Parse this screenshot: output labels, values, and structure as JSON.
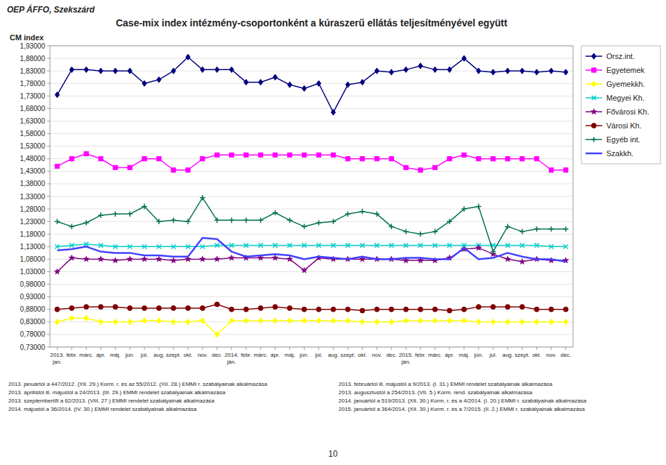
{
  "chart_data": {
    "type": "line",
    "title": "Case-mix index intézmény-csoportonként a kúraszerű ellátás teljesítményével együtt",
    "header": "OEP ÁFFO, Szekszárd",
    "y_label": "CM index",
    "footer_left": [
      "2013. januártól a 447/2012. (XII. 29.) Korm. r. és az 55/2012. (XII. 28.) EMMI r. szabályainak alkalmazása",
      "2013. áprilistól ill. májustól a 24/2013. (III. 29.) EMMI rendelet szabályainak alkalmazása",
      "2013. szeptembertől a 62/2013. (VIII. 27.) EMMI rendelet szabályainak alkalmazása",
      "2014. májustól a 36/2014. (IV. 30.) EMMI rendelet szabályainak alkalmazása"
    ],
    "footer_right": [
      "2013. februártól ill. májustól a 9/2013. (I. 31.) EMMI rendelet szabályainak alkalmazása",
      "2013. augusztustól a 254/2013. (VII. 5.) Korm. rend. szabályainak alkalmazása",
      "2014. januártól a 519/2013. (XII. 30.) Korm. r. és a 4/2014. (I. 20.) EMMI r. szabályainak alkalmazása",
      "2015. januártól a 364/2014. (XII. 30.) Korm. r. és a 7/2015. (II. 2.) EMMI r. szabályainak alkalmazása"
    ],
    "page_number": "10",
    "grid": true,
    "legend": "right",
    "ylim": [
      0.73,
      1.93
    ],
    "yticks": [
      {
        "value": 0.73,
        "label": "0,73000"
      },
      {
        "value": 0.78,
        "label": "0,78000"
      },
      {
        "value": 0.83,
        "label": "0,83000"
      },
      {
        "value": 0.88,
        "label": "0,88000"
      },
      {
        "value": 0.93,
        "label": "0,93000"
      },
      {
        "value": 0.98,
        "label": "0,98000"
      },
      {
        "value": 1.03,
        "label": "1,03000"
      },
      {
        "value": 1.08,
        "label": "1,08000"
      },
      {
        "value": 1.13,
        "label": "1,13000"
      },
      {
        "value": 1.18,
        "label": "1,18000"
      },
      {
        "value": 1.23,
        "label": "1,23000"
      },
      {
        "value": 1.28,
        "label": "1,28000"
      },
      {
        "value": 1.33,
        "label": "1,33000"
      },
      {
        "value": 1.38,
        "label": "1,38000"
      },
      {
        "value": 1.43,
        "label": "1,43000"
      },
      {
        "value": 1.48,
        "label": "1,48000"
      },
      {
        "value": 1.53,
        "label": "1,53000"
      },
      {
        "value": 1.58,
        "label": "1,58000"
      },
      {
        "value": 1.63,
        "label": "1,63000"
      },
      {
        "value": 1.68,
        "label": "1,68000"
      },
      {
        "value": 1.73,
        "label": "1,73000"
      },
      {
        "value": 1.78,
        "label": "1,78000"
      },
      {
        "value": 1.83,
        "label": "1,83000"
      },
      {
        "value": 1.88,
        "label": "1,88000"
      },
      {
        "value": 1.93,
        "label": "1,93000"
      }
    ],
    "categories": [
      "2013.\njan.",
      "febr.",
      "márc.",
      "ápr.",
      "máj.",
      "jún.",
      "júl.",
      "aug.",
      "szept.",
      "okt.",
      "nov.",
      "dec.",
      "2014.\nján.",
      "febr.",
      "márc.",
      "ápr.",
      "máj.",
      "jún.",
      "júl.",
      "aug.",
      "szept.",
      "okt.",
      "nov.",
      "dec.",
      "2015.\nján.",
      "febr.",
      "márc.",
      "ápr.",
      "máj.",
      "jún.",
      "júl.",
      "aug.",
      "szept.",
      "okt.",
      "nov.",
      "dec."
    ],
    "series": [
      {
        "name": "Orsz.int.",
        "color": "#00007F",
        "marker": "diamond",
        "values": [
          1.735,
          1.835,
          1.835,
          1.83,
          1.83,
          1.83,
          1.78,
          1.795,
          1.83,
          1.885,
          1.835,
          1.835,
          1.835,
          1.785,
          1.785,
          1.805,
          1.775,
          1.76,
          1.78,
          1.665,
          1.775,
          1.785,
          1.83,
          1.825,
          1.835,
          1.85,
          1.835,
          1.835,
          1.88,
          1.83,
          1.825,
          1.83,
          1.83,
          1.825,
          1.83,
          1.825
        ]
      },
      {
        "name": "Egyetemek",
        "color": "#FF00FF",
        "marker": "square",
        "values": [
          1.45,
          1.48,
          1.5,
          1.48,
          1.445,
          1.445,
          1.48,
          1.48,
          1.435,
          1.435,
          1.48,
          1.495,
          1.495,
          1.495,
          1.495,
          1.495,
          1.495,
          1.495,
          1.495,
          1.495,
          1.48,
          1.48,
          1.48,
          1.48,
          1.445,
          1.435,
          1.445,
          1.48,
          1.495,
          1.48,
          1.48,
          1.48,
          1.48,
          1.48,
          1.435,
          1.435
        ]
      },
      {
        "name": "Gyemekkh.",
        "color": "#FFFF00",
        "marker": "diamond",
        "values": [
          0.83,
          0.845,
          0.845,
          0.83,
          0.83,
          0.83,
          0.835,
          0.835,
          0.83,
          0.83,
          0.835,
          0.78,
          0.835,
          0.835,
          0.835,
          0.835,
          0.835,
          0.835,
          0.835,
          0.835,
          0.835,
          0.83,
          0.83,
          0.83,
          0.835,
          0.835,
          0.835,
          0.835,
          0.835,
          0.83,
          0.83,
          0.83,
          0.83,
          0.83,
          0.83,
          0.83
        ]
      },
      {
        "name": "Megyei Kh.",
        "color": "#00CCCC",
        "marker": "x",
        "values": [
          1.13,
          1.135,
          1.14,
          1.135,
          1.13,
          1.13,
          1.13,
          1.13,
          1.13,
          1.13,
          1.13,
          1.135,
          1.135,
          1.135,
          1.135,
          1.135,
          1.135,
          1.135,
          1.135,
          1.135,
          1.135,
          1.135,
          1.135,
          1.135,
          1.135,
          1.135,
          1.135,
          1.135,
          1.135,
          1.135,
          1.135,
          1.135,
          1.135,
          1.135,
          1.13,
          1.13
        ]
      },
      {
        "name": "Fővárosi Kh.",
        "color": "#7F007F",
        "marker": "star",
        "values": [
          1.03,
          1.085,
          1.08,
          1.08,
          1.075,
          1.08,
          1.08,
          1.08,
          1.075,
          1.08,
          1.08,
          1.08,
          1.085,
          1.085,
          1.085,
          1.085,
          1.08,
          1.035,
          1.085,
          1.08,
          1.08,
          1.08,
          1.08,
          1.08,
          1.075,
          1.075,
          1.075,
          1.085,
          1.12,
          1.125,
          1.1,
          1.08,
          1.07,
          1.08,
          1.075,
          1.075
        ]
      },
      {
        "name": "Városi Kh.",
        "color": "#7F0000",
        "marker": "circle",
        "values": [
          0.88,
          0.885,
          0.89,
          0.89,
          0.89,
          0.885,
          0.885,
          0.885,
          0.885,
          0.885,
          0.885,
          0.9,
          0.88,
          0.88,
          0.885,
          0.89,
          0.885,
          0.88,
          0.88,
          0.88,
          0.88,
          0.875,
          0.88,
          0.88,
          0.88,
          0.88,
          0.88,
          0.875,
          0.88,
          0.89,
          0.89,
          0.89,
          0.89,
          0.88,
          0.88,
          0.88
        ]
      },
      {
        "name": "Egyéb int.",
        "color": "#007050",
        "marker": "plus",
        "values": [
          1.23,
          1.21,
          1.225,
          1.255,
          1.26,
          1.26,
          1.29,
          1.23,
          1.235,
          1.23,
          1.325,
          1.235,
          1.235,
          1.235,
          1.235,
          1.265,
          1.235,
          1.21,
          1.225,
          1.23,
          1.26,
          1.27,
          1.26,
          1.21,
          1.19,
          1.18,
          1.19,
          1.23,
          1.28,
          1.29,
          1.11,
          1.21,
          1.19,
          1.2,
          1.2,
          1.2
        ]
      },
      {
        "name": "Szakkh.",
        "color": "#4040FF",
        "marker": "none",
        "values": [
          1.115,
          1.12,
          1.13,
          1.11,
          1.105,
          1.105,
          1.095,
          1.095,
          1.09,
          1.09,
          1.165,
          1.16,
          1.11,
          1.09,
          1.095,
          1.1,
          1.095,
          1.08,
          1.09,
          1.085,
          1.08,
          1.09,
          1.08,
          1.08,
          1.085,
          1.085,
          1.08,
          1.08,
          1.125,
          1.08,
          1.085,
          1.105,
          1.09,
          1.08,
          1.08,
          1.07
        ]
      }
    ]
  }
}
